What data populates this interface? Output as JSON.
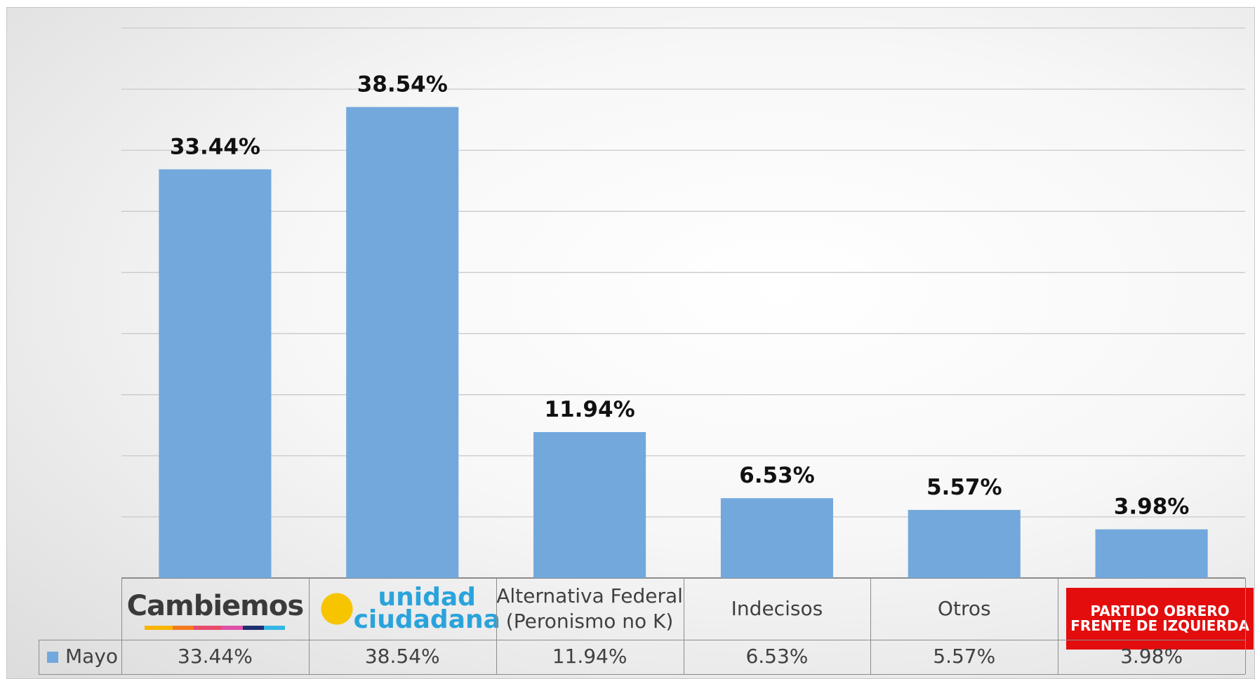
{
  "chart_data": {
    "type": "bar",
    "categories": [
      "Cambiemos",
      "unidad ciudadana",
      "Alternativa Federal (Peronismo no K)",
      "Indecisos",
      "Otros",
      "PARTIDO OBRERO FRENTE DE IZQUIERDA"
    ],
    "series": [
      {
        "name": "Mayo",
        "color": "#72a8dc",
        "values": [
          33.44,
          38.54,
          11.94,
          6.53,
          5.57,
          3.98
        ],
        "value_labels": [
          "33.44%",
          "38.54%",
          "11.94%",
          "6.53%",
          "5.57%",
          "3.98%"
        ]
      }
    ],
    "ylim": [
      0,
      45
    ],
    "yticks": [
      0,
      5,
      10,
      15,
      20,
      25,
      30,
      35,
      40,
      45
    ],
    "grid": true,
    "data_table": true
  }
}
